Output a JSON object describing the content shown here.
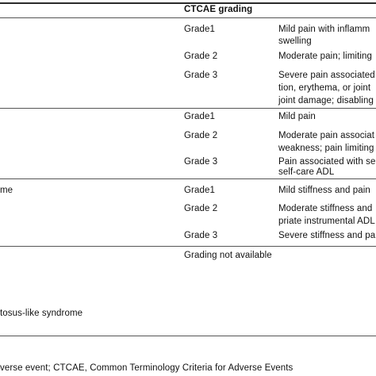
{
  "header": {
    "ctcae_grading": "CTCAE grading"
  },
  "rows": [
    {
      "label": "",
      "grades": [
        {
          "grade": "Grade1",
          "desc": [
            "Mild pain with inflamm",
            "swelling"
          ]
        },
        {
          "grade": "Grade 2",
          "desc": [
            "Moderate pain; limiting"
          ]
        },
        {
          "grade": "Grade 3",
          "desc": [
            "Severe pain associated",
            "tion, erythema, or joint",
            "joint damage; disabling"
          ]
        }
      ]
    },
    {
      "label": "",
      "grades": [
        {
          "grade": "Grade1",
          "desc": [
            "Mild pain"
          ]
        },
        {
          "grade": "Grade 2",
          "desc": [
            "Moderate pain associat",
            "weakness; pain limiting"
          ]
        },
        {
          "grade": "Grade 3",
          "desc": [
            "Pain associated with se",
            "self-care ADL"
          ]
        }
      ]
    },
    {
      "label": "me",
      "grades": [
        {
          "grade": "Grade1",
          "desc": [
            "Mild stiffness and pain"
          ]
        },
        {
          "grade": "Grade 2",
          "desc": [
            "Moderate stiffness and",
            "priate instrumental ADL"
          ]
        },
        {
          "grade": "Grade 3",
          "desc": [
            "Severe stiffness and pa"
          ]
        }
      ]
    },
    {
      "label": "",
      "grades": [
        {
          "grade": "Grading not available",
          "desc": []
        }
      ]
    }
  ],
  "extra_row_label": "tosus-like syndrome",
  "footnote": "verse event; CTCAE, Common Terminology Criteria for Adverse Events"
}
